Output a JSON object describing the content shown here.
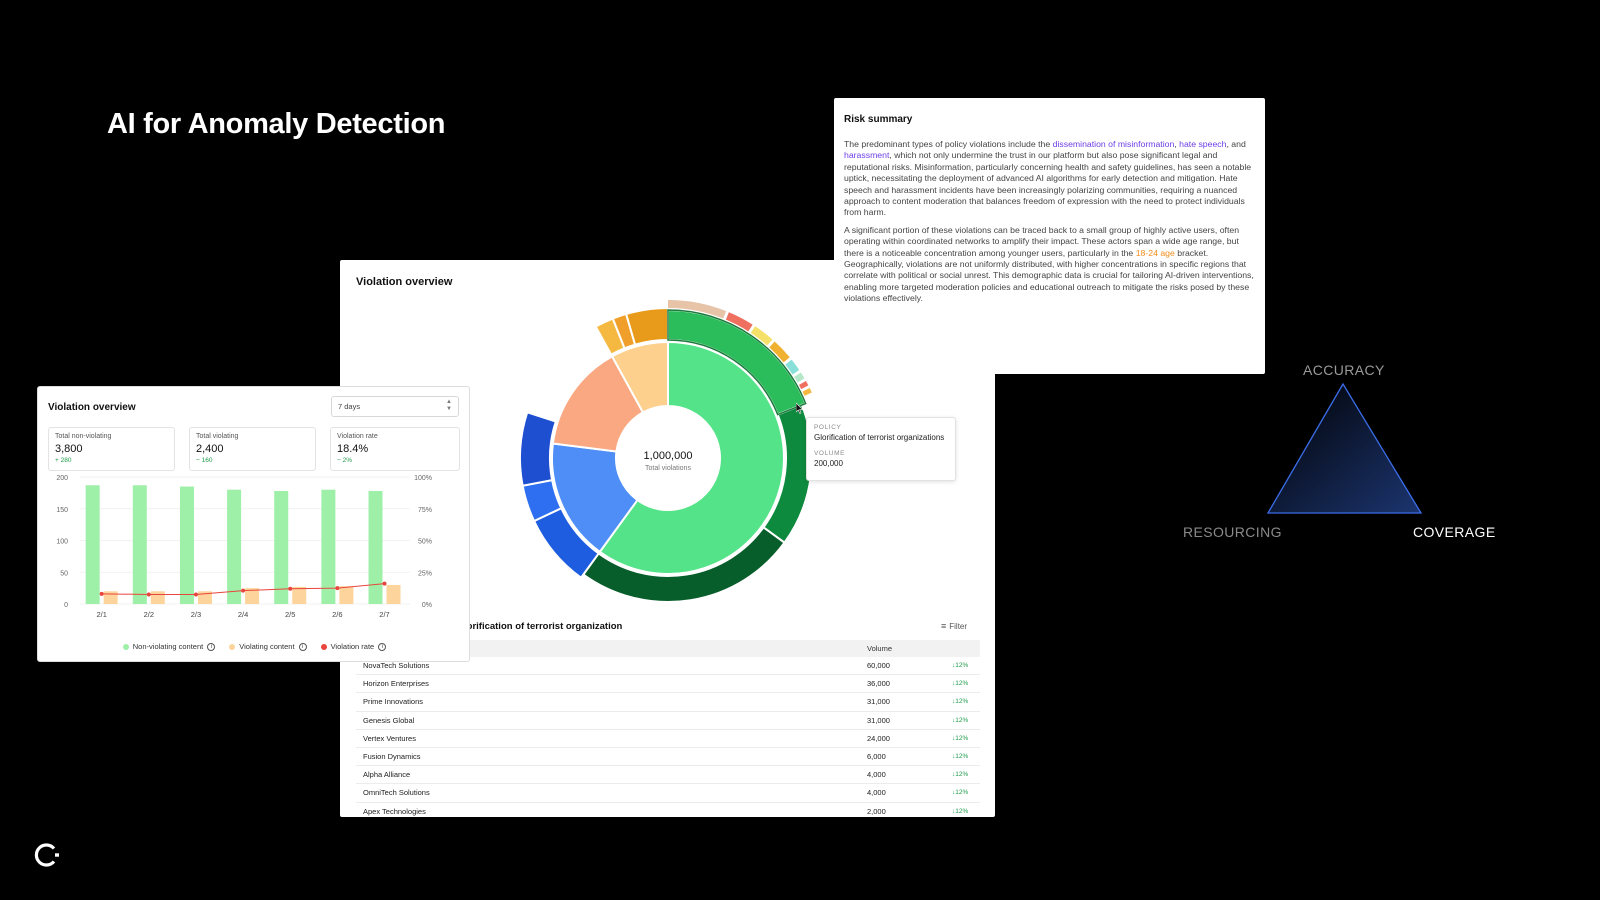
{
  "slide": {
    "title": "AI for Anomaly Detection",
    "logo_icon": "logo-icon"
  },
  "violation_panel": {
    "title": "Violation overview",
    "center_value": "1,000,000",
    "center_label": "Total violations",
    "tooltip": {
      "policy_label": "POLICY",
      "policy_value": "Glorification of terrorist organizations",
      "volume_label": "VOLUME",
      "volume_value": "200,000"
    },
    "table_title": "lorification of terrorist organization",
    "filter_label": "Filter",
    "table": {
      "volume_header": "Volume",
      "rows": [
        {
          "name": "NovaTech Solutions",
          "volume": "60,000",
          "change": "↓12%"
        },
        {
          "name": "Horizon Enterprises",
          "volume": "36,000",
          "change": "↓12%"
        },
        {
          "name": "Prime Innovations",
          "volume": "31,000",
          "change": "↓12%"
        },
        {
          "name": "Genesis Global",
          "volume": "31,000",
          "change": "↓12%"
        },
        {
          "name": "Vertex Ventures",
          "volume": "24,000",
          "change": "↓12%"
        },
        {
          "name": "Fusion Dynamics",
          "volume": "6,000",
          "change": "↓12%"
        },
        {
          "name": "Alpha Alliance",
          "volume": "4,000",
          "change": "↓12%"
        },
        {
          "name": "OmniTech Solutions",
          "volume": "4,000",
          "change": "↓12%"
        },
        {
          "name": "Apex Technologies",
          "volume": "2,000",
          "change": "↓12%"
        }
      ]
    }
  },
  "risk_summary": {
    "title": "Risk summary",
    "p1_a": "The predominant types of policy violations include the ",
    "p1_link1": "dissemination of misinformation",
    "p1_b": ", ",
    "p1_link2": "hate speech",
    "p1_c": ", and ",
    "p1_link3": "harassment",
    "p1_d": ", which not only undermine the trust in our platform but also pose significant legal and reputational risks. Misinformation, particularly concerning health and safety guidelines, has seen a notable uptick, necessitating the deployment of advanced AI algorithms for early detection and mitigation. Hate speech and harassment incidents have been increasingly polarizing communities, requiring a nuanced approach to content moderation that balances freedom of expression with the need to protect individuals from harm.",
    "p2_a": "A significant portion of these violations can be traced back to a small group of highly active users, often operating within coordinated networks to amplify their impact. These actors span a wide age range, but there is a noticeable concentration among younger users, particularly in the ",
    "p2_hl": "18-24 age",
    "p2_b": " bracket. Geographically, violations are not uniformly distributed, with higher concentrations in specific regions that correlate with political or social unrest. This demographic data is crucial for tailoring AI-driven interventions, enabling more targeted moderation policies and educational outreach to mitigate the risks posed by these violations effectively."
  },
  "small_panel": {
    "title": "Violation overview",
    "range": "7 days",
    "kpis": [
      {
        "label": "Total non-violating",
        "value": "3,800",
        "delta": "+ 280"
      },
      {
        "label": "Total violating",
        "value": "2,400",
        "delta": "− 160"
      },
      {
        "label": "Violation rate",
        "value": "18.4%",
        "delta": "− 2%"
      }
    ],
    "legend": {
      "non_violating": "Non-violating content",
      "violating": "Violating content",
      "rate": "Violation rate"
    }
  },
  "chart_data": [
    {
      "type": "bar",
      "categories": [
        "2/1",
        "2/2",
        "2/3",
        "2/4",
        "2/5",
        "2/6",
        "2/7"
      ],
      "series": [
        {
          "name": "Non-violating content",
          "values": [
            187,
            187,
            185,
            180,
            178,
            180,
            178
          ],
          "color": "#9ef0a8",
          "axis": "left"
        },
        {
          "name": "Violating content",
          "values": [
            20,
            20,
            20,
            25,
            27,
            28,
            30
          ],
          "color": "#fdd49b",
          "axis": "left"
        },
        {
          "name": "Violation rate",
          "type": "line",
          "values": [
            8,
            7.5,
            7.5,
            10.5,
            12,
            12.5,
            16
          ],
          "color": "#e8453c",
          "axis": "right"
        }
      ],
      "y_left": {
        "ticks": [
          "0",
          "50",
          "100",
          "150",
          "200"
        ],
        "range": [
          0,
          200
        ]
      },
      "y_right": {
        "ticks": [
          "0%",
          "25%",
          "50%",
          "75%",
          "100%"
        ],
        "range": [
          0,
          100
        ]
      }
    },
    {
      "type": "pie",
      "inner": [
        {
          "name": "green",
          "value": 60,
          "color": "#54e389"
        },
        {
          "name": "blue",
          "value": 17,
          "color": "#4f8ef7"
        },
        {
          "name": "salmon",
          "value": 15,
          "color": "#f9a882"
        },
        {
          "name": "peach",
          "value": 8,
          "color": "#fdd08e"
        }
      ],
      "outer": [
        {
          "from": 0,
          "to": 19,
          "color": "#2bbd5c",
          "emph": true
        },
        {
          "from": 19,
          "to": 35,
          "color": "#0e8a3e"
        },
        {
          "from": 35,
          "to": 60,
          "color": "#075e2a"
        },
        {
          "from": 60,
          "to": 68,
          "color": "#1f5de0",
          "emph": true
        },
        {
          "from": 68,
          "to": 72,
          "color": "#2d6ff0",
          "emph": true
        },
        {
          "from": 72,
          "to": 80,
          "color": "#1d4fd0",
          "emph": true
        },
        {
          "from": 92,
          "to": 94,
          "color": "#f5b942",
          "emph": true
        },
        {
          "from": 94,
          "to": 95.5,
          "color": "#f0a02a",
          "emph": true
        },
        {
          "from": 95.5,
          "to": 100,
          "color": "#e89b1a",
          "emph": true
        }
      ],
      "rim": [
        {
          "from": 0,
          "to": 6,
          "color": "#e7c3a8"
        },
        {
          "from": 6.3,
          "to": 9,
          "color": "#f07060"
        },
        {
          "from": 9.3,
          "to": 11.5,
          "color": "#f5e06a"
        },
        {
          "from": 11.8,
          "to": 14,
          "color": "#f0b030"
        },
        {
          "from": 14.3,
          "to": 15.6,
          "color": "#88e0d8"
        },
        {
          "from": 15.9,
          "to": 16.6,
          "color": "#b5e8c8"
        },
        {
          "from": 16.9,
          "to": 17.4,
          "color": "#f07060"
        },
        {
          "from": 17.7,
          "to": 18.2,
          "color": "#f5b942"
        }
      ]
    }
  ],
  "triangle": {
    "top_label": "ACCURACY",
    "left_label": "RESOURCING",
    "right_label": "COVERAGE",
    "colors": {
      "top": "#9a9a9a",
      "left": "#8a8a8a",
      "right": "#ffffff",
      "stroke": "#3b6de8"
    }
  }
}
